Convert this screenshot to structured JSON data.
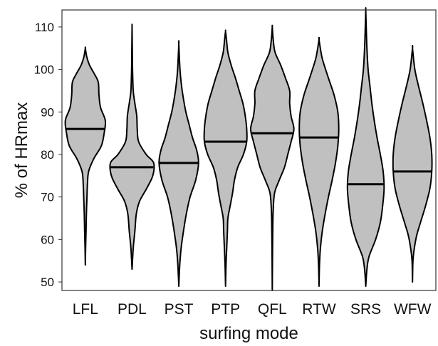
{
  "chart_data": {
    "type": "violin",
    "title": "",
    "xlabel": "surfing mode",
    "ylabel": "% of HRmax",
    "ylim": [
      48,
      114
    ],
    "yticks": [
      50,
      60,
      70,
      80,
      90,
      100,
      110
    ],
    "grid": false,
    "fill_color": "#c0c0c0",
    "stroke_color": "#000000",
    "categories": [
      "LFL",
      "PDL",
      "PST",
      "PTP",
      "QFL",
      "RTW",
      "SRS",
      "WFW"
    ],
    "series": [
      {
        "category": "LFL",
        "min": 54,
        "max": 105,
        "median": 86,
        "profile": [
          [
            54,
            0
          ],
          [
            58,
            0.012
          ],
          [
            62,
            0.03
          ],
          [
            66,
            0.045
          ],
          [
            70,
            0.07
          ],
          [
            73,
            0.09
          ],
          [
            76,
            0.14
          ],
          [
            79,
            0.36
          ],
          [
            82,
            0.68
          ],
          [
            85,
            0.8
          ],
          [
            88,
            0.85
          ],
          [
            91,
            0.65
          ],
          [
            94,
            0.58
          ],
          [
            97,
            0.55
          ],
          [
            99,
            0.38
          ],
          [
            101,
            0.18
          ],
          [
            103,
            0.06
          ],
          [
            105,
            0
          ]
        ]
      },
      {
        "category": "PDL",
        "min": 53,
        "max": 110,
        "median": 77,
        "profile": [
          [
            53,
            0
          ],
          [
            58,
            0.05
          ],
          [
            62,
            0.12
          ],
          [
            66,
            0.18
          ],
          [
            69,
            0.32
          ],
          [
            72,
            0.62
          ],
          [
            75,
            0.88
          ],
          [
            78,
            0.92
          ],
          [
            80,
            0.6
          ],
          [
            83,
            0.28
          ],
          [
            86,
            0.22
          ],
          [
            89,
            0.2
          ],
          [
            92,
            0.12
          ],
          [
            95,
            0.05
          ],
          [
            100,
            0.02
          ],
          [
            105,
            0.01
          ],
          [
            110,
            0
          ]
        ]
      },
      {
        "category": "PST",
        "min": 49,
        "max": 106,
        "median": 78,
        "profile": [
          [
            49,
            0
          ],
          [
            54,
            0.04
          ],
          [
            58,
            0.1
          ],
          [
            62,
            0.2
          ],
          [
            66,
            0.32
          ],
          [
            70,
            0.48
          ],
          [
            74,
            0.72
          ],
          [
            78,
            0.84
          ],
          [
            81,
            0.76
          ],
          [
            84,
            0.58
          ],
          [
            87,
            0.44
          ],
          [
            90,
            0.3
          ],
          [
            93,
            0.2
          ],
          [
            96,
            0.12
          ],
          [
            100,
            0.05
          ],
          [
            106,
            0
          ]
        ]
      },
      {
        "category": "PTP",
        "min": 49,
        "max": 109,
        "median": 83,
        "profile": [
          [
            49,
            0
          ],
          [
            54,
            0.02
          ],
          [
            58,
            0.05
          ],
          [
            62,
            0.08
          ],
          [
            65,
            0.1
          ],
          [
            68,
            0.2
          ],
          [
            71,
            0.3
          ],
          [
            74,
            0.38
          ],
          [
            77,
            0.52
          ],
          [
            80,
            0.76
          ],
          [
            83,
            0.9
          ],
          [
            86,
            0.9
          ],
          [
            89,
            0.84
          ],
          [
            92,
            0.74
          ],
          [
            95,
            0.58
          ],
          [
            98,
            0.42
          ],
          [
            101,
            0.24
          ],
          [
            104,
            0.1
          ],
          [
            107,
            0.04
          ],
          [
            109,
            0
          ]
        ]
      },
      {
        "category": "QFL",
        "min": 48,
        "max": 110,
        "median": 85,
        "profile": [
          [
            48,
            0
          ],
          [
            55,
            0.008
          ],
          [
            62,
            0.02
          ],
          [
            67,
            0.04
          ],
          [
            71,
            0.1
          ],
          [
            74,
            0.3
          ],
          [
            77,
            0.52
          ],
          [
            80,
            0.66
          ],
          [
            83,
            0.8
          ],
          [
            86,
            0.92
          ],
          [
            89,
            0.8
          ],
          [
            92,
            0.74
          ],
          [
            95,
            0.74
          ],
          [
            98,
            0.56
          ],
          [
            101,
            0.36
          ],
          [
            104,
            0.12
          ],
          [
            107,
            0.04
          ],
          [
            110,
            0
          ]
        ]
      },
      {
        "category": "RTW",
        "min": 49,
        "max": 107,
        "median": 84,
        "profile": [
          [
            49,
            0
          ],
          [
            54,
            0.02
          ],
          [
            58,
            0.06
          ],
          [
            62,
            0.14
          ],
          [
            66,
            0.26
          ],
          [
            70,
            0.4
          ],
          [
            74,
            0.56
          ],
          [
            78,
            0.7
          ],
          [
            82,
            0.8
          ],
          [
            86,
            0.84
          ],
          [
            90,
            0.8
          ],
          [
            94,
            0.64
          ],
          [
            97,
            0.46
          ],
          [
            100,
            0.28
          ],
          [
            103,
            0.12
          ],
          [
            107,
            0
          ]
        ]
      },
      {
        "category": "SRS",
        "min": 49,
        "max": 114,
        "median": 73,
        "profile": [
          [
            49,
            0
          ],
          [
            53,
            0.05
          ],
          [
            56,
            0.14
          ],
          [
            60,
            0.42
          ],
          [
            64,
            0.62
          ],
          [
            68,
            0.72
          ],
          [
            72,
            0.78
          ],
          [
            76,
            0.74
          ],
          [
            80,
            0.62
          ],
          [
            84,
            0.48
          ],
          [
            88,
            0.36
          ],
          [
            92,
            0.26
          ],
          [
            96,
            0.18
          ],
          [
            100,
            0.1
          ],
          [
            105,
            0.05
          ],
          [
            110,
            0.02
          ],
          [
            114,
            0
          ]
        ]
      },
      {
        "category": "WFW",
        "min": 50,
        "max": 105,
        "median": 76,
        "profile": [
          [
            50,
            0
          ],
          [
            55,
            0.02
          ],
          [
            58,
            0.08
          ],
          [
            61,
            0.18
          ],
          [
            64,
            0.34
          ],
          [
            68,
            0.56
          ],
          [
            72,
            0.74
          ],
          [
            76,
            0.82
          ],
          [
            80,
            0.82
          ],
          [
            84,
            0.74
          ],
          [
            88,
            0.6
          ],
          [
            92,
            0.44
          ],
          [
            96,
            0.26
          ],
          [
            100,
            0.1
          ],
          [
            105,
            0
          ]
        ]
      }
    ]
  }
}
